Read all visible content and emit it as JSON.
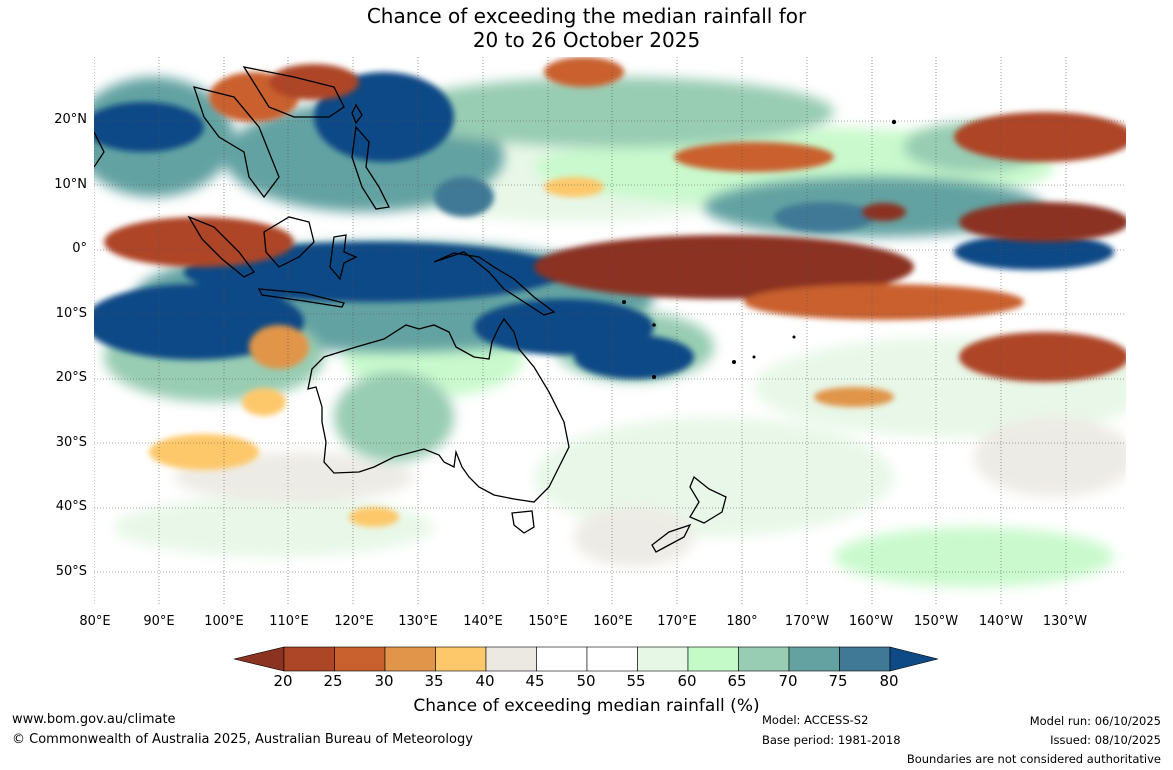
{
  "title": {
    "line1": "Chance of exceeding the median rainfall for",
    "line2": "20 to 26 October 2025"
  },
  "axes": {
    "lat_labels": [
      "20°N",
      "10°N",
      "0°",
      "10°S",
      "20°S",
      "30°S",
      "40°S",
      "50°S"
    ],
    "lon_labels": [
      "80°E",
      "90°E",
      "100°E",
      "110°E",
      "120°E",
      "130°E",
      "140°E",
      "150°E",
      "160°E",
      "170°E",
      "180°",
      "170°W",
      "160°W",
      "150°W",
      "140°W",
      "130°W"
    ]
  },
  "colorbar": {
    "title": "Chance of exceeding median rainfall (%)",
    "ticks": [
      "20",
      "25",
      "30",
      "35",
      "40",
      "45",
      "50",
      "55",
      "60",
      "65",
      "70",
      "75",
      "80"
    ],
    "colors": [
      "#8b3220",
      "#ad4527",
      "#c9612f",
      "#e0954a",
      "#fdc86a",
      "#ece9e3",
      "#ffffff",
      "#ffffff",
      "#e6f7e6",
      "#c4f9c8",
      "#98ccb3",
      "#64a2a2",
      "#3f7996",
      "#0e4a86"
    ]
  },
  "footer": {
    "website": "www.bom.gov.au/climate",
    "copyright": "© Commonwealth of Australia 2025, Australian Bureau of Meteorology",
    "model": "Model: ACCESS-S2",
    "base_period": "Base period: 1981-2018",
    "model_run": "Model run: 06/10/2025",
    "issued": "Issued: 08/10/2025",
    "boundaries": "Boundaries are not considered authoritative"
  }
}
